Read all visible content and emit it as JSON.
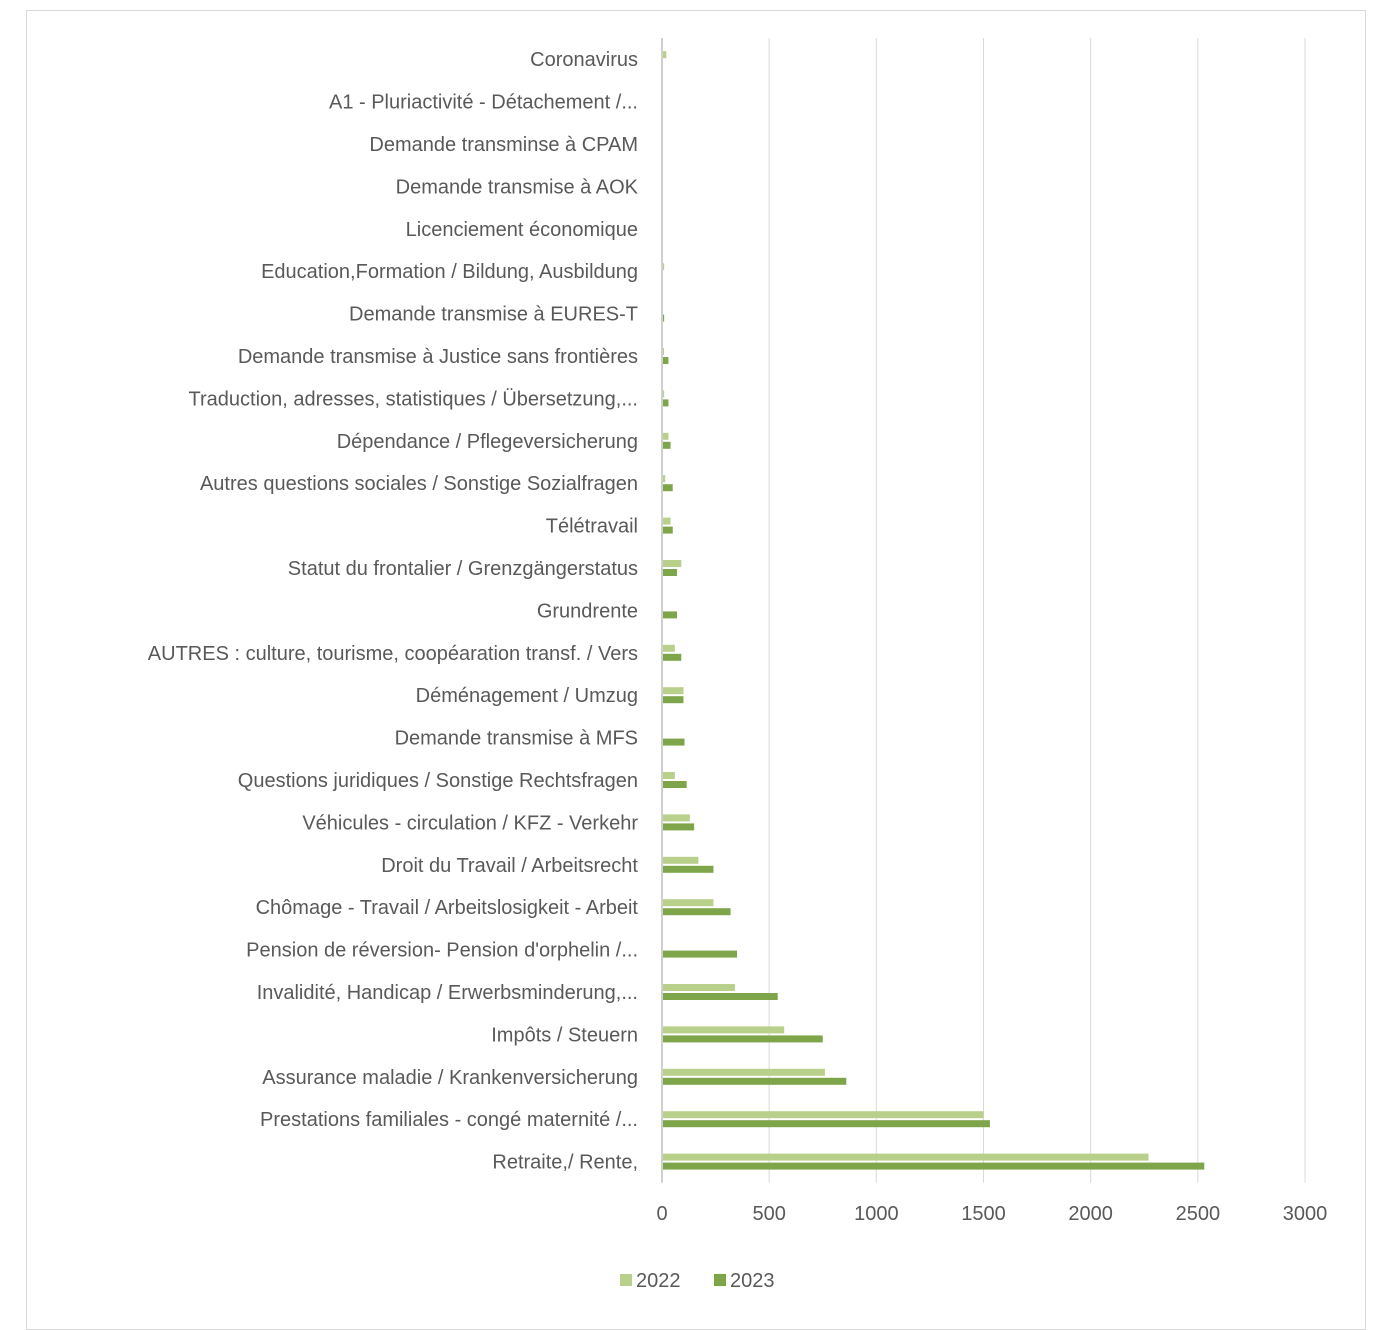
{
  "chart_data": {
    "type": "bar",
    "orientation": "horizontal",
    "categories": [
      "Coronavirus",
      "A1 - Pluriactivité - Détachement /...",
      "Demande transminse à CPAM",
      "Demande transmise à AOK",
      "Licenciement économique",
      "Education,Formation / Bildung, Ausbildung",
      "Demande transmise à EURES-T",
      "Demande transmise  à Justice sans frontières",
      "Traduction, adresses, statistiques / Übersetzung,...",
      "Dépendance / Pflegeversicherung",
      "Autres questions sociales / Sonstige Sozialfragen",
      "Télétravail",
      "Statut du frontalier / Grenzgängerstatus",
      "Grundrente",
      "AUTRES : culture, tourisme, coopéaration transf. / Vers",
      "Déménagement / Umzug",
      "Demande transmise à MFS",
      "Questions juridiques / Sonstige Rechtsfragen",
      "Véhicules - circulation / KFZ - Verkehr",
      "Droit du Travail / Arbeitsrecht",
      "Chômage - Travail / Arbeitslosigkeit - Arbeit",
      "Pension de réversion- Pension d'orphelin /...",
      "Invalidité, Handicap / Erwerbsminderung,...",
      "Impôts / Steuern",
      "Assurance maladie / Krankenversicherung",
      "Prestations familiales - congé maternité /...",
      "Retraite,/ Rente,"
    ],
    "series": [
      {
        "name": "2022",
        "color": "#b9d08a",
        "values": [
          20,
          0,
          0,
          0,
          0,
          10,
          0,
          5,
          10,
          30,
          15,
          40,
          90,
          0,
          60,
          100,
          0,
          60,
          130,
          170,
          240,
          0,
          340,
          570,
          760,
          1500,
          2270
        ]
      },
      {
        "name": "2023",
        "color": "#7ea549",
        "values": [
          0,
          0,
          0,
          0,
          0,
          0,
          10,
          30,
          30,
          40,
          50,
          50,
          70,
          70,
          90,
          100,
          105,
          115,
          150,
          240,
          320,
          350,
          540,
          750,
          860,
          1530,
          2530
        ]
      }
    ],
    "xlim": [
      0,
      3000
    ],
    "xticks": [
      0,
      500,
      1000,
      1500,
      2000,
      2500,
      3000
    ],
    "grid": true,
    "legend_position": "bottom"
  }
}
